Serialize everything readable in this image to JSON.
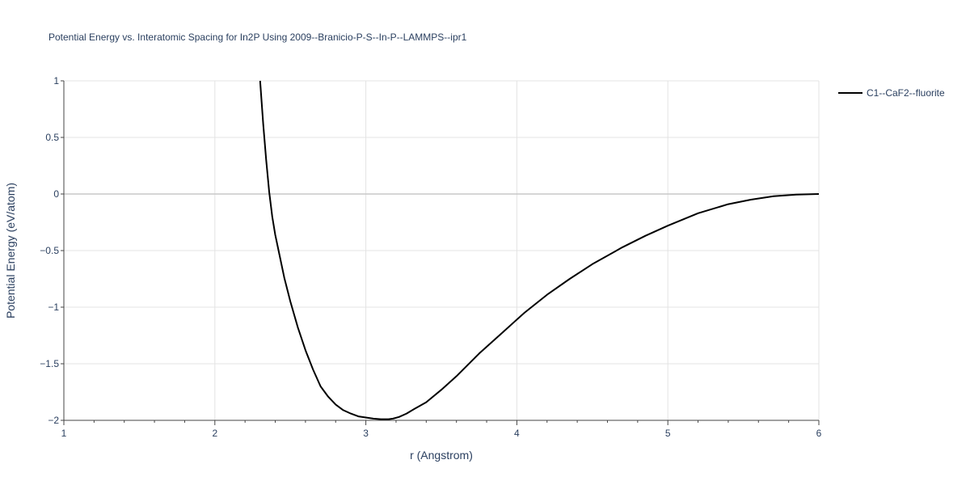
{
  "chart_data": {
    "type": "line",
    "title": "Potential Energy vs. Interatomic Spacing for In2P Using 2009--Branicio-P-S--In-P--LAMMPS--ipr1",
    "xlabel": "r (Angstrom)",
    "ylabel": "Potential Energy (eV/atom)",
    "xlim": [
      1,
      6
    ],
    "ylim": [
      -2,
      1
    ],
    "x_ticks": [
      1,
      2,
      3,
      4,
      5,
      6
    ],
    "x_tick_labels": [
      "1",
      "2",
      "3",
      "4",
      "5",
      "6"
    ],
    "y_ticks": [
      -2,
      -1.5,
      -1,
      -0.5,
      0,
      0.5,
      1
    ],
    "y_tick_labels": [
      "−2",
      "−1.5",
      "−1",
      "−0.5",
      "0",
      "0.5",
      "1"
    ],
    "grid": true,
    "legend_position": "top-right",
    "series": [
      {
        "name": "C1--CaF2--fluorite",
        "color": "#000000",
        "x": [
          2.3,
          2.32,
          2.34,
          2.36,
          2.38,
          2.4,
          2.43,
          2.46,
          2.5,
          2.55,
          2.6,
          2.65,
          2.7,
          2.75,
          2.8,
          2.85,
          2.9,
          2.95,
          3.0,
          3.05,
          3.1,
          3.15,
          3.18,
          3.22,
          3.27,
          3.32,
          3.4,
          3.5,
          3.6,
          3.75,
          3.9,
          4.05,
          4.2,
          4.35,
          4.5,
          4.7,
          4.85,
          5.0,
          5.2,
          5.4,
          5.55,
          5.7,
          5.85,
          6.0
        ],
        "y": [
          1.0,
          0.62,
          0.3,
          0.02,
          -0.2,
          -0.36,
          -0.55,
          -0.74,
          -0.95,
          -1.18,
          -1.38,
          -1.55,
          -1.7,
          -1.79,
          -1.86,
          -1.91,
          -1.94,
          -1.965,
          -1.975,
          -1.985,
          -1.99,
          -1.99,
          -1.985,
          -1.97,
          -1.94,
          -1.9,
          -1.84,
          -1.73,
          -1.61,
          -1.41,
          -1.23,
          -1.05,
          -0.89,
          -0.75,
          -0.62,
          -0.47,
          -0.37,
          -0.28,
          -0.17,
          -0.09,
          -0.05,
          -0.02,
          -0.005,
          0.0
        ]
      }
    ]
  }
}
